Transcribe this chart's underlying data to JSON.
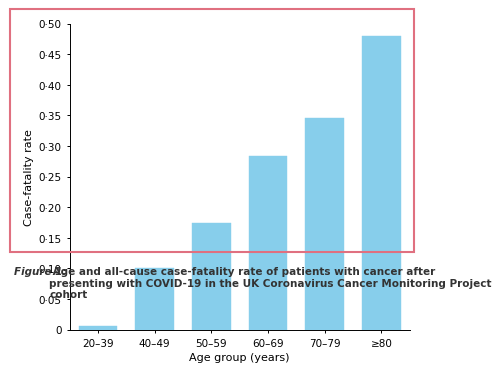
{
  "categories": [
    "20–39",
    "40–49",
    "50–59",
    "60–69",
    "70–79",
    "≥80"
  ],
  "values": [
    0.005,
    0.101,
    0.174,
    0.284,
    0.346,
    0.479
  ],
  "bar_color": "#87CEEB",
  "bar_edge_color": "#87CEEB",
  "ylabel": "Case-fatality rate",
  "xlabel": "Age group (years)",
  "ylim": [
    0,
    0.5
  ],
  "yticks": [
    0,
    0.05,
    0.1,
    0.15,
    0.2,
    0.25,
    0.3,
    0.35,
    0.4,
    0.45,
    0.5
  ],
  "ytick_labels": [
    "0",
    "0·05",
    "0·10",
    "0·15",
    "0·20",
    "0·25",
    "0·30",
    "0·35",
    "0·40",
    "0·45",
    "0·50"
  ],
  "caption_bold": "Figure 1:",
  "caption_rest": " Age and all-cause case-fatality rate of patients with cancer after presenting with COVID-19 in the UK Coronavirus Cancer Monitoring Project cohort",
  "border_color": "#e07080",
  "background_color": "#ffffff",
  "caption_color": "#333333"
}
